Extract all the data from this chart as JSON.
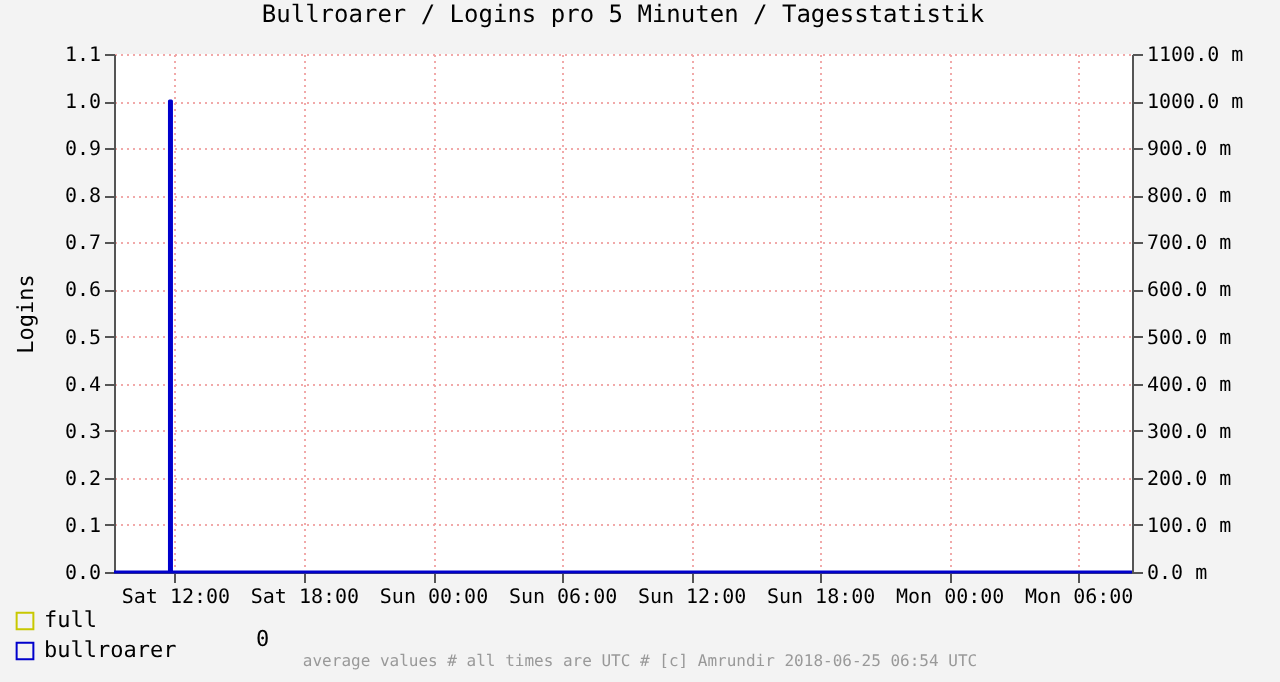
{
  "chart_data": {
    "type": "step",
    "title": "Bullroarer / Logins pro 5 Minuten / Tagesstatistik",
    "ylabel": "Logins",
    "x": [
      "2018-06-23T09:10",
      "2018-06-23T11:45",
      "2018-06-23T11:50",
      "2018-06-25T08:30"
    ],
    "series": [
      {
        "name": "full",
        "color": "#c8c800",
        "values": [
          null,
          null,
          null,
          null
        ]
      },
      {
        "name": "bullroarer",
        "color": "#0000cc",
        "values": [
          0,
          1,
          0,
          0
        ]
      }
    ],
    "xlim": [
      "2018-06-23T09:10",
      "2018-06-25T08:30"
    ],
    "xticks": [
      {
        "value": "2018-06-23T12:00",
        "label": "Sat 12:00"
      },
      {
        "value": "2018-06-23T18:00",
        "label": "Sat 18:00"
      },
      {
        "value": "2018-06-24T00:00",
        "label": "Sun 00:00"
      },
      {
        "value": "2018-06-24T06:00",
        "label": "Sun 06:00"
      },
      {
        "value": "2018-06-24T12:00",
        "label": "Sun 12:00"
      },
      {
        "value": "2018-06-24T18:00",
        "label": "Sun 18:00"
      },
      {
        "value": "2018-06-25T00:00",
        "label": "Mon 00:00"
      },
      {
        "value": "2018-06-25T06:00",
        "label": "Mon 06:00"
      }
    ],
    "ylim": [
      0,
      1.1
    ],
    "yticks": [
      {
        "value": 0,
        "label": "0.0"
      },
      0.1,
      0.2,
      0.3,
      0.4,
      0.5,
      0.6,
      0.7,
      0.8,
      0.9,
      {
        "value": 1,
        "label": "1.0"
      },
      1.1
    ],
    "y2lim": [
      0,
      1100
    ],
    "y2ticks": [
      {
        "value": 0,
        "label": "0.0 m"
      },
      {
        "value": 100,
        "label": "100.0 m"
      },
      {
        "value": 200,
        "label": "200.0 m"
      },
      {
        "value": 300,
        "label": "300.0 m"
      },
      {
        "value": 400,
        "label": "400.0 m"
      },
      {
        "value": 500,
        "label": "500.0 m"
      },
      {
        "value": 600,
        "label": "600.0 m"
      },
      {
        "value": 700,
        "label": "700.0 m"
      },
      {
        "value": 800,
        "label": "800.0 m"
      },
      {
        "value": 900,
        "label": "900.0 m"
      },
      {
        "value": 1000,
        "label": "1000.0 m"
      },
      {
        "value": 1100,
        "label": "1100.0 m"
      }
    ],
    "grid": true,
    "legend": "bottom left",
    "annotations": [
      "0",
      "average values # all times are UTC # [c] Amrundir 2018-06-25 06:54 UTC"
    ]
  }
}
